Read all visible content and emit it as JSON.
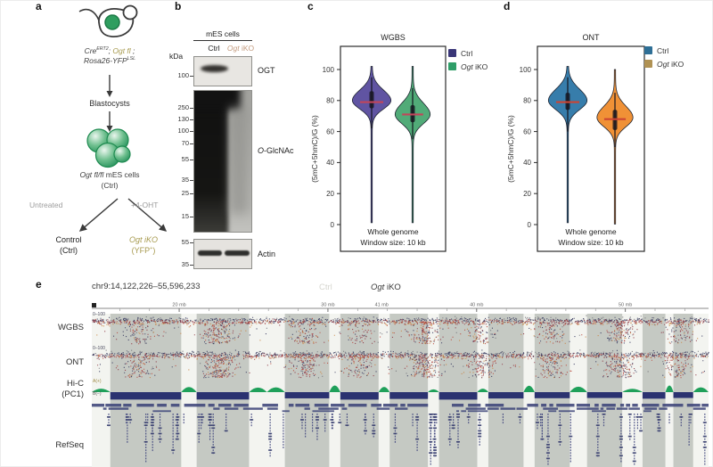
{
  "colors": {
    "ctrl_navy": "#3a3678",
    "iko_green": "#2f9e68",
    "ctrl_blue": "#2e6f96",
    "iko_tan": "#b09254",
    "violin_purple": "#5a4d9e",
    "violin_green": "#4aa873",
    "violin_blue": "#2f78a8",
    "violin_orange": "#ef8d2e",
    "median_red": "#c2455a",
    "olive_text": "#a79a4f",
    "hic_pos_green": "#1fa05a",
    "hic_neg_navy": "#2b3270",
    "refseq_blue": "#3e4479",
    "band_gray": "#c5c9c3"
  },
  "figure": {
    "a": {
      "panel_label": "a",
      "genotype": {
        "cre": "Cre",
        "cre_sup": "ERT2",
        "sep1": "; ",
        "ogt": "Ogt fl",
        "sep2": " ;",
        "rosa": "Rosa26-YFP",
        "rosa_sup": "LSL"
      },
      "blastocysts": "Blastocysts",
      "cells_italic": "Ogt fl/fl",
      "cells_rest": " mES cells",
      "cells_sub": "(Ctrl)",
      "untreated": "Untreated",
      "four_oht": "+4-OHT",
      "control_line1": "Control",
      "control_line2": "(Ctrl)",
      "iko_line1": "Ogt iKO",
      "iko_pre": "(YFP",
      "iko_sup": "+",
      "iko_post": ")"
    },
    "b": {
      "panel_label": "b",
      "header": "mES cells",
      "lane_ctrl": "Ctrl",
      "lane_iko_italic": "Ogt",
      "lane_iko_rest": " iKO",
      "kda": "kDa",
      "ogt_label": "OGT",
      "oglcnac_o": "O",
      "oglcnac_rest": "-GlcNAc",
      "actin_label": "Actin",
      "blot1_markers": [
        "100"
      ],
      "blot2_markers": [
        "250",
        "130",
        "100",
        "70",
        "55",
        "35",
        "25",
        "15"
      ],
      "blot3_markers": [
        "55",
        "35"
      ]
    },
    "e": {
      "panel_label": "e",
      "locus": "chr9:14,122,226–55,596,233",
      "ctrl_label": "Ctrl",
      "iko_italic": "Ogt",
      "iko_rest": " iKO",
      "tracks": {
        "wgbs": "WGBS",
        "ont": "ONT",
        "hic1": "Hi-C",
        "hic2": "(PC1)",
        "refseq": "RefSeq",
        "range_wgbs": "0–100",
        "range_ont": "0–100",
        "hic_pos": "A(+)",
        "hic_neg": "B(−)"
      },
      "ruler": {
        "start_mb": 14.122226,
        "end_mb": 55.596233,
        "span_label": "41 mb",
        "ticks": [
          {
            "mb": 20,
            "label": "20 mb"
          },
          {
            "mb": 30,
            "label": "30 mb"
          },
          {
            "mb": 40,
            "label": "40 mb"
          },
          {
            "mb": 50,
            "label": "50 mb"
          }
        ]
      },
      "bands": [
        [
          0.03,
          0.115
        ],
        [
          0.17,
          0.085
        ],
        [
          0.313,
          0.072
        ],
        [
          0.403,
          0.062
        ],
        [
          0.483,
          0.062
        ],
        [
          0.563,
          0.062
        ],
        [
          0.643,
          0.057
        ],
        [
          0.718,
          0.057
        ],
        [
          0.803,
          0.057
        ],
        [
          0.893,
          0.037
        ],
        [
          0.943,
          0.032
        ]
      ],
      "sprays": [
        {
          "x": 0.075,
          "s": 0.5
        },
        {
          "x": 0.205,
          "s": 1.0
        },
        {
          "x": 0.345,
          "s": 0.55
        },
        {
          "x": 0.435,
          "s": 0.4
        },
        {
          "x": 0.54,
          "s": 0.9
        },
        {
          "x": 0.63,
          "s": 0.6
        },
        {
          "x": 0.745,
          "s": 0.55
        },
        {
          "x": 0.855,
          "s": 0.7
        },
        {
          "x": 0.95,
          "s": 0.45
        }
      ],
      "dot_colors": [
        [
          "#30335a",
          0.4
        ],
        [
          "#8c3040",
          0.26
        ],
        [
          "#b8453a",
          0.13
        ],
        [
          "#c9823e",
          0.1
        ],
        [
          "#707078",
          0.11
        ]
      ]
    }
  },
  "chart_data": [
    {
      "type": "violin",
      "panel": "c",
      "title": "WGBS",
      "ylabel": "(5mC+5hmC)/G (%)",
      "yticks": [
        0,
        20,
        40,
        60,
        80,
        100
      ],
      "ylim": [
        0,
        105
      ],
      "footer1": "Whole genome",
      "footer2": "Window size: 10 kb",
      "legend": [
        {
          "italic_prefix": "",
          "label": "Ctrl",
          "color": "#3a3678"
        },
        {
          "italic_prefix": "Ogt",
          "label": " iKO",
          "color": "#2f9e68"
        }
      ],
      "violins": [
        {
          "name": "Ctrl",
          "fill": "#5a4d9e",
          "median": 79,
          "q1": 75,
          "q3": 86,
          "w_low": 62,
          "w_high": 95,
          "mode": 80,
          "sigma": 6.0,
          "tip_top": 102,
          "tip_bottom": 0,
          "maxw": 21,
          "median_color": "#c2455a"
        },
        {
          "name": "Ogt iKO",
          "fill": "#4aa873",
          "median": 71,
          "q1": 66,
          "q3": 77,
          "w_low": 55,
          "w_high": 88,
          "mode": 71,
          "sigma": 6.5,
          "tip_top": 102,
          "tip_bottom": 1,
          "maxw": 19,
          "median_color": "#c2455a"
        }
      ]
    },
    {
      "type": "violin",
      "panel": "d",
      "title": "ONT",
      "ylabel": "(5mC+5hmC)/G (%)",
      "yticks": [
        0,
        20,
        40,
        60,
        80,
        100
      ],
      "ylim": [
        0,
        105
      ],
      "footer1": "Whole genome",
      "footer2": "Window size: 10 kb",
      "legend": [
        {
          "italic_prefix": "",
          "label": "Ctrl",
          "color": "#2e6f96"
        },
        {
          "italic_prefix": "Ogt",
          "label": " iKO",
          "color": "#b09254"
        }
      ],
      "violins": [
        {
          "name": "Ctrl",
          "fill": "#2f78a8",
          "median": 79,
          "q1": 74,
          "q3": 85,
          "w_low": 60,
          "w_high": 95,
          "mode": 80,
          "sigma": 6.5,
          "tip_top": 102,
          "tip_bottom": 0,
          "maxw": 21,
          "median_color": "#cc4433"
        },
        {
          "name": "Ogt iKO",
          "fill": "#ef8d2e",
          "median": 68,
          "q1": 61,
          "q3": 74,
          "w_low": 50,
          "w_high": 85,
          "mode": 69,
          "sigma": 6.5,
          "tip_top": 100,
          "tip_bottom": 0,
          "maxw": 19.5,
          "median_color": "#cc4433"
        }
      ]
    }
  ]
}
